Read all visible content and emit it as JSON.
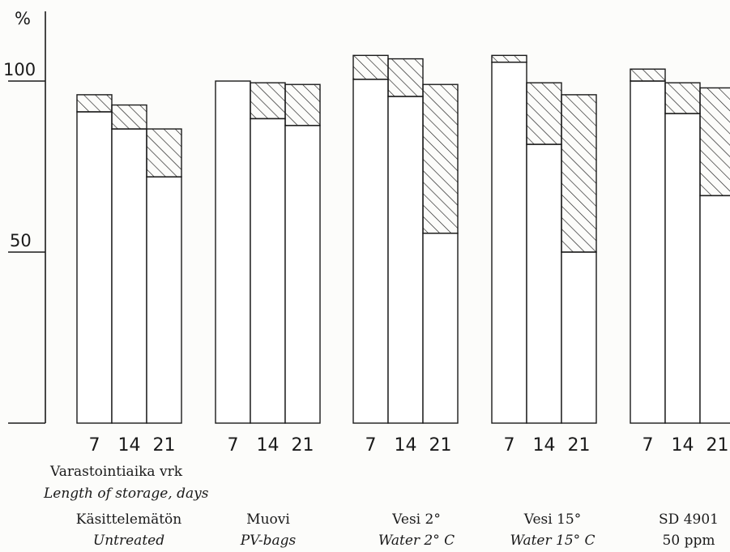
{
  "chart_data": {
    "type": "bar",
    "ylabel": "%",
    "ylim": [
      0,
      120
    ],
    "yticks": [
      50,
      100
    ],
    "series_roles": {
      "base": "white lower segment",
      "cap": "hatched upper segment"
    },
    "groups": [
      {
        "id": "untreated",
        "label_fi": "Käsittelemätön",
        "label_en": "Untreated",
        "bars": [
          {
            "day": "7",
            "base": 91,
            "total": 96
          },
          {
            "day": "14",
            "base": 86,
            "total": 93
          },
          {
            "day": "21",
            "base": 72,
            "total": 86
          }
        ]
      },
      {
        "id": "pv-bags",
        "label_fi": "Muovi",
        "label_en": "PV-bags",
        "bars": [
          {
            "day": "7",
            "base": 100,
            "total": 100
          },
          {
            "day": "14",
            "base": 89,
            "total": 99.5
          },
          {
            "day": "21",
            "base": 87,
            "total": 99
          }
        ]
      },
      {
        "id": "water-2",
        "label_fi": "Vesi  2°",
        "label_en": "Water  2° C",
        "bars": [
          {
            "day": "7",
            "base": 100.5,
            "total": 107.5
          },
          {
            "day": "14",
            "base": 95.5,
            "total": 106.5
          },
          {
            "day": "21",
            "base": 55.5,
            "total": 99
          }
        ]
      },
      {
        "id": "water-15",
        "label_fi": "Vesi  15°",
        "label_en": "Water  15° C",
        "bars": [
          {
            "day": "7",
            "base": 105.5,
            "total": 107.5
          },
          {
            "day": "14",
            "base": 81.5,
            "total": 99.5
          },
          {
            "day": "21",
            "base": 50,
            "total": 96
          }
        ]
      },
      {
        "id": "sd4901",
        "label_fi": "SD 4901",
        "label_en": "50 ppm",
        "bars": [
          {
            "day": "7",
            "base": 100,
            "total": 103.5
          },
          {
            "day": "14",
            "base": 90.5,
            "total": 99.5
          },
          {
            "day": "21",
            "base": 66.5,
            "total": 98
          }
        ]
      }
    ],
    "xlabel_fi": "Varastointiaika vrk",
    "xlabel_en": "Length of storage, days",
    "grid": false,
    "legend": "none"
  }
}
